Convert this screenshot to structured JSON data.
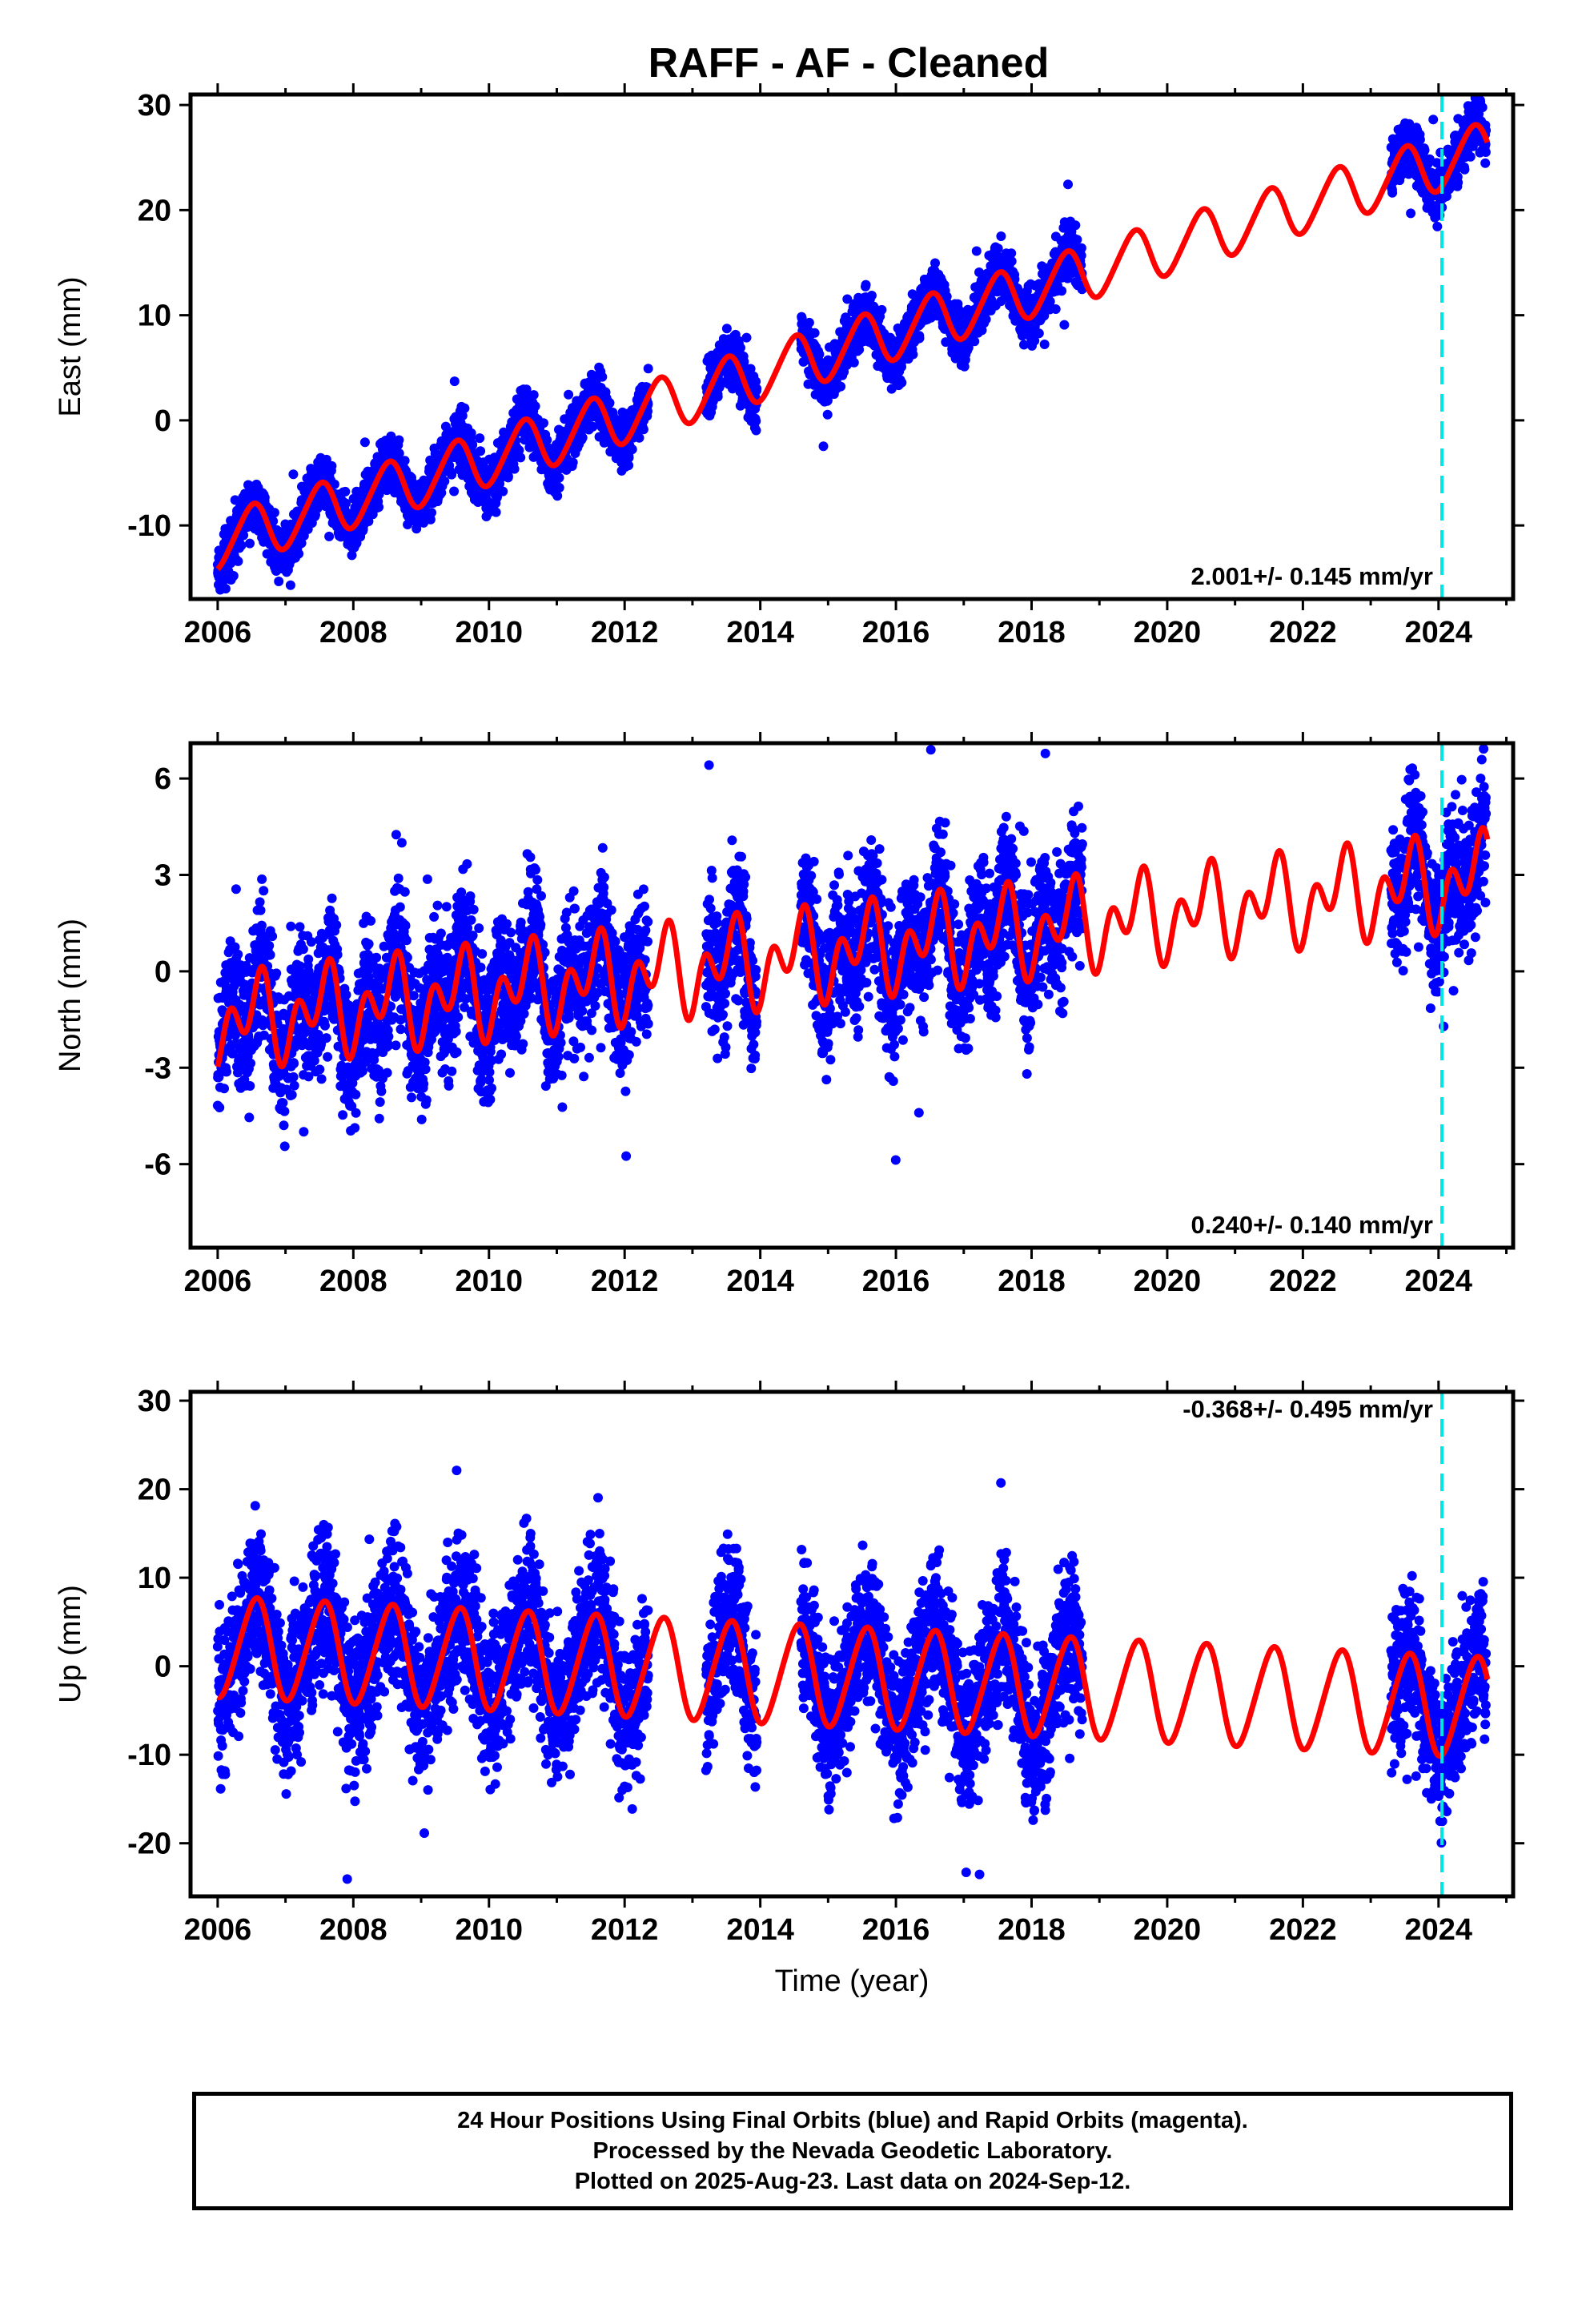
{
  "title": "RAFF  - AF - Cleaned",
  "footer": {
    "line1": "24 Hour Positions Using Final Orbits (blue) and Rapid Orbits (magenta).",
    "line2": "Processed by the Nevada Geodetic Laboratory.",
    "line3": "Plotted on 2025-Aug-23. Last data on 2024-Sep-12."
  },
  "colors": {
    "points": "#0000ff",
    "model": "#ff0000",
    "event_line": "#00e5e5"
  },
  "chart_data": [
    {
      "type": "scatter",
      "component": "east",
      "title": "RAFF  - AF - Cleaned",
      "ylabel": "East (mm)",
      "xlabel": "",
      "xlim": [
        2005.6,
        2025.1
      ],
      "ylim": [
        -17,
        31
      ],
      "xticks": [
        "2006",
        "2008",
        "2010",
        "2012",
        "2014",
        "2016",
        "2018",
        "2020",
        "2022",
        "2024"
      ],
      "yticks": [
        "30",
        "20",
        "10",
        "0",
        "-10"
      ],
      "rate_text": "2.001+/- 0.145 mm/yr",
      "event_line_x": 2024.05,
      "data_segments": [
        [
          2006.0,
          2012.35
        ],
        [
          2013.2,
          2013.95
        ],
        [
          2014.6,
          2018.75
        ],
        [
          2023.3,
          2024.7
        ]
      ],
      "series": [
        {
          "name": "observations",
          "model": {
            "t0": 2006.0,
            "offset": -11.6,
            "rate": 2.001,
            "annual_amp": 2.55,
            "annual_phase": 0.5,
            "semi_amp": 0.3,
            "noise": 1.25
          }
        },
        {
          "name": "fit",
          "model": {
            "t0": 2006.0,
            "offset": -11.6,
            "rate": 2.001,
            "annual_amp": 2.55,
            "annual_phase": 0.5,
            "semi_amp": 0.3
          }
        }
      ]
    },
    {
      "type": "scatter",
      "component": "north",
      "ylabel": "North (mm)",
      "xlabel": "",
      "xlim": [
        2005.6,
        2025.1
      ],
      "ylim": [
        -8.6,
        7.1
      ],
      "xticks": [
        "2006",
        "2008",
        "2010",
        "2012",
        "2014",
        "2016",
        "2018",
        "2020",
        "2022",
        "2024"
      ],
      "yticks": [
        "6",
        "3",
        "0",
        "-3",
        "-6"
      ],
      "rate_text": "0.240+/- 0.140 mm/yr",
      "event_line_x": 2024.05,
      "data_segments": [
        [
          2006.0,
          2012.35
        ],
        [
          2013.2,
          2013.95
        ],
        [
          2014.6,
          2018.75
        ],
        [
          2023.3,
          2024.7
        ]
      ],
      "series": [
        {
          "name": "observations",
          "model": {
            "t0": 2006.0,
            "offset": -1.6,
            "rate": 0.24,
            "annual_amp": 0.85,
            "annual_phase": 0.55,
            "semi_amp": 0.95,
            "noise": 1.05
          }
        },
        {
          "name": "fit",
          "model": {
            "t0": 2006.0,
            "offset": -1.6,
            "rate": 0.24,
            "annual_amp": 0.85,
            "annual_phase": 0.55,
            "semi_amp": 0.95
          }
        }
      ]
    },
    {
      "type": "scatter",
      "component": "up",
      "ylabel": "Up (mm)",
      "xlabel": "Time (year)",
      "xlim": [
        2005.6,
        2025.1
      ],
      "ylim": [
        -26,
        31
      ],
      "xticks": [
        "2006",
        "2008",
        "2010",
        "2012",
        "2014",
        "2016",
        "2018",
        "2020",
        "2022",
        "2024"
      ],
      "yticks": [
        "30",
        "20",
        "10",
        "0",
        "-10",
        "-20"
      ],
      "rate_text": "-0.368+/- 0.495 mm/yr",
      "event_line_x": 2024.05,
      "data_segments": [
        [
          2006.0,
          2012.35
        ],
        [
          2013.2,
          2013.95
        ],
        [
          2014.6,
          2018.75
        ],
        [
          2023.3,
          2024.7
        ]
      ],
      "series": [
        {
          "name": "observations",
          "model": {
            "t0": 2006.0,
            "offset": 2.2,
            "rate": -0.368,
            "annual_amp": 5.6,
            "annual_phase": 0.55,
            "semi_amp": 0.6,
            "noise": 4.2
          }
        },
        {
          "name": "fit",
          "model": {
            "t0": 2006.0,
            "offset": 2.2,
            "rate": -0.368,
            "annual_amp": 5.6,
            "annual_phase": 0.55,
            "semi_amp": 0.6
          }
        }
      ]
    }
  ]
}
